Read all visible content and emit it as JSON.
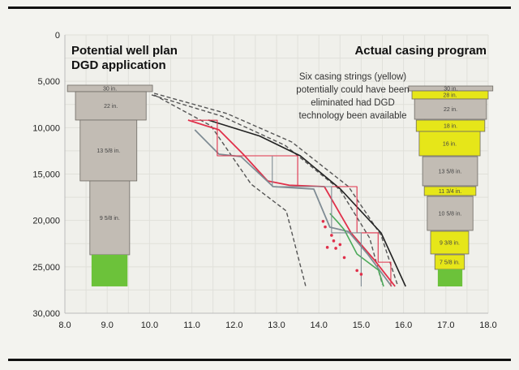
{
  "chart_data": {
    "type": "diagram",
    "xlim": [
      8.0,
      18.0
    ],
    "ylim": [
      0,
      30000
    ],
    "y_inverted": true,
    "grid": true,
    "xticks": [
      "8.0",
      "9.0",
      "10.0",
      "11.0",
      "12.0",
      "13.0",
      "14.0",
      "15.0",
      "16.0",
      "17.0",
      "18.0"
    ],
    "yticks": [
      "0",
      "5,000",
      "10,000",
      "15,000",
      "20,000",
      "25,000",
      "30,000"
    ],
    "title_left": [
      "Potential well plan",
      "DGD application"
    ],
    "title_right": "Actual casing program",
    "annotation": [
      "Six casing strings (yellow)",
      "potentially could have been",
      "eliminated had DGD",
      "technology been available"
    ],
    "colors": {
      "casing": "#c2bcb4",
      "eliminated": "#e6e619",
      "open_hole": "#6cc23a",
      "red": "#e0304a",
      "gray": "#7f8c94",
      "green": "#4caa5a",
      "black": "#222222",
      "dashed": "#555555"
    },
    "left_casings": [
      {
        "label": "30 in.",
        "x": [
          8.06,
          10.07
        ],
        "depth": [
          5420,
          6120
        ],
        "kind": "casing"
      },
      {
        "label": "22 in.",
        "x": [
          8.25,
          9.92
        ],
        "depth": [
          6120,
          9180
        ],
        "kind": "casing"
      },
      {
        "label": "13 5/8 in.",
        "x": [
          8.36,
          9.7
        ],
        "depth": [
          9180,
          15740
        ],
        "kind": "casing"
      },
      {
        "label": "9 5/8 in.",
        "x": [
          8.59,
          9.53
        ],
        "depth": [
          15740,
          23700
        ],
        "kind": "casing"
      },
      {
        "label": "",
        "x": [
          8.63,
          9.48
        ],
        "depth": [
          23700,
          27110
        ],
        "kind": "open_hole"
      }
    ],
    "right_casings": [
      {
        "label": "30 in.",
        "x": [
          16.12,
          18.11
        ],
        "depth": [
          5510,
          6035
        ],
        "kind": "casing"
      },
      {
        "label": "28 in.",
        "x": [
          16.2,
          18.0
        ],
        "depth": [
          6035,
          6910
        ],
        "kind": "eliminated"
      },
      {
        "label": "22 in.",
        "x": [
          16.26,
          17.96
        ],
        "depth": [
          6910,
          9096
        ],
        "kind": "casing"
      },
      {
        "label": "18 in.",
        "x": [
          16.3,
          17.92
        ],
        "depth": [
          9183,
          10408
        ],
        "kind": "eliminated"
      },
      {
        "label": "16 in.",
        "x": [
          16.37,
          17.81
        ],
        "depth": [
          10408,
          13031
        ],
        "kind": "eliminated"
      },
      {
        "label": "13 5/8 in.",
        "x": [
          16.45,
          17.75
        ],
        "depth": [
          13119,
          16267
        ],
        "kind": "casing"
      },
      {
        "label": "11 3/4 in.",
        "x": [
          16.49,
          17.71
        ],
        "depth": [
          16355,
          17317
        ],
        "kind": "eliminated"
      },
      {
        "label": "10 5/8 in.",
        "x": [
          16.56,
          17.64
        ],
        "depth": [
          17405,
          21078
        ],
        "kind": "casing"
      },
      {
        "label": "9 3/8 in.",
        "x": [
          16.64,
          17.54
        ],
        "depth": [
          21165,
          23614
        ],
        "kind": "eliminated"
      },
      {
        "label": "7 5/8 in.",
        "x": [
          16.74,
          17.44
        ],
        "depth": [
          23701,
          25276
        ],
        "kind": "eliminated"
      },
      {
        "label": "",
        "x": [
          16.81,
          17.39
        ],
        "depth": [
          25276,
          27113
        ],
        "kind": "open_hole"
      }
    ],
    "series": [
      {
        "style": "dashed",
        "points": [
          [
            10.11,
            6297
          ],
          [
            11.83,
            8484
          ],
          [
            13.36,
            11545
          ],
          [
            14.7,
            16355
          ],
          [
            15.47,
            21603
          ],
          [
            15.85,
            26850
          ]
        ]
      },
      {
        "style": "dashed",
        "points": [
          [
            10.05,
            6470
          ],
          [
            11.7,
            8750
          ],
          [
            13.2,
            11900
          ],
          [
            14.5,
            16700
          ],
          [
            15.2,
            21900
          ],
          [
            15.5,
            26900
          ]
        ]
      },
      {
        "style": "dashed",
        "points": [
          [
            10.11,
            6472
          ],
          [
            11.45,
            9795
          ],
          [
            12.4,
            16092
          ],
          [
            13.23,
            18978
          ],
          [
            13.69,
            27113
          ]
        ]
      },
      {
        "style": "black",
        "points": [
          [
            11.39,
            9183
          ],
          [
            12.6,
            10900
          ],
          [
            13.56,
            13031
          ],
          [
            14.51,
            16617
          ],
          [
            15.47,
            21340
          ],
          [
            16.05,
            27113
          ]
        ]
      },
      {
        "style": "red",
        "points": [
          [
            10.91,
            9183
          ],
          [
            11.64,
            10233
          ],
          [
            12.2,
            12800
          ],
          [
            12.79,
            15743
          ],
          [
            13.3,
            16200
          ],
          [
            14.13,
            16355
          ],
          [
            14.76,
            21340
          ],
          [
            15.3,
            24200
          ],
          [
            15.8,
            27113
          ]
        ]
      },
      {
        "style": "gray",
        "points": [
          [
            11.07,
            10233
          ],
          [
            11.64,
            12857
          ],
          [
            12.16,
            13119
          ],
          [
            12.92,
            16355
          ],
          [
            13.88,
            16617
          ],
          [
            14.26,
            20728
          ],
          [
            14.7,
            21200
          ],
          [
            15.15,
            23614
          ],
          [
            15.72,
            27113
          ]
        ]
      },
      {
        "style": "green",
        "points": [
          [
            14.26,
            19241
          ],
          [
            14.45,
            20200
          ],
          [
            14.6,
            21000
          ],
          [
            14.75,
            22300
          ],
          [
            14.9,
            23614
          ],
          [
            15.41,
            25363
          ],
          [
            15.53,
            27113
          ]
        ]
      },
      {
        "style": "red-steps",
        "points": [
          [
            11.0,
            9200
          ],
          [
            11.6,
            9200
          ],
          [
            11.6,
            13031
          ],
          [
            13.5,
            13031
          ],
          [
            13.5,
            16355
          ],
          [
            14.9,
            16355
          ],
          [
            14.9,
            21340
          ],
          [
            15.4,
            21340
          ],
          [
            15.4,
            24500
          ],
          [
            15.7,
            24500
          ],
          [
            15.7,
            27113
          ]
        ]
      },
      {
        "style": "gray-steps",
        "points": [
          [
            12.9,
            13031
          ],
          [
            12.9,
            16355
          ],
          [
            14.3,
            16355
          ],
          [
            14.3,
            21340
          ],
          [
            15.0,
            21340
          ],
          [
            15.0,
            27113
          ]
        ]
      }
    ],
    "red_points": [
      [
        14.1,
        20100
      ],
      [
        14.15,
        20700
      ],
      [
        14.3,
        21600
      ],
      [
        14.35,
        22200
      ],
      [
        14.4,
        23000
      ],
      [
        14.5,
        22600
      ],
      [
        14.2,
        22900
      ],
      [
        14.6,
        24000
      ],
      [
        14.9,
        25400
      ],
      [
        15.0,
        25800
      ]
    ]
  }
}
